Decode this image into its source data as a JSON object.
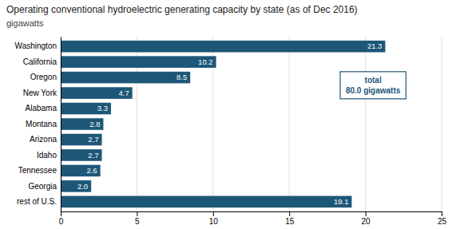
{
  "chart_data": {
    "type": "bar",
    "orientation": "horizontal",
    "title": "Operating conventional hydroelectric generating capacity by state (as of Dec 2016)",
    "subtitle": "gigawatts",
    "categories": [
      "Washington",
      "California",
      "Oregon",
      "New York",
      "Alabama",
      "Montana",
      "Arizona",
      "Idaho",
      "Tennessee",
      "Georgia",
      "rest of U.S."
    ],
    "values": [
      21.3,
      10.2,
      8.5,
      4.7,
      3.3,
      2.8,
      2.7,
      2.7,
      2.6,
      2.0,
      19.1
    ],
    "value_labels": [
      "21.3",
      "10.2",
      "8.5",
      "4.7",
      "3.3",
      "2.8",
      "2.7",
      "2.7",
      "2.6",
      "2.0",
      "19.1"
    ],
    "color": "#1d5778",
    "xlim": [
      0,
      25
    ],
    "xticks": [
      0,
      5,
      10,
      15,
      20,
      25
    ],
    "grid": true,
    "data_labels": true,
    "annotations": [
      "total",
      "80.0 gigawatts"
    ]
  }
}
